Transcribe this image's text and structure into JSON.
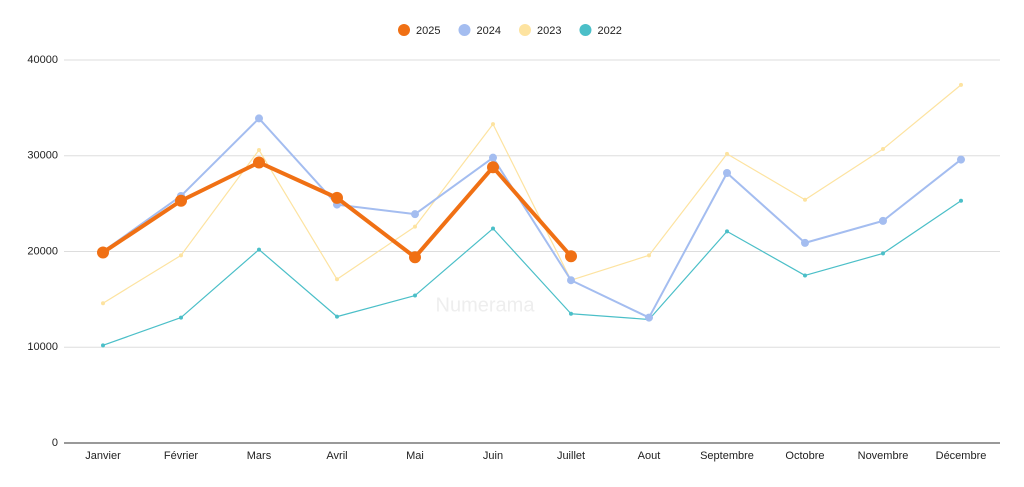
{
  "chart_data": {
    "type": "line",
    "categories": [
      "Janvier",
      "Février",
      "Mars",
      "Avril",
      "Mai",
      "Juin",
      "Juillet",
      "Aout",
      "Septembre",
      "Octobre",
      "Novembre",
      "Décembre"
    ],
    "series": [
      {
        "name": "2025",
        "color": "#f07014",
        "values": [
          19900,
          25300,
          29300,
          25600,
          19400,
          28800,
          19500,
          null,
          null,
          null,
          null,
          null
        ]
      },
      {
        "name": "2024",
        "color": "#a4bdf0",
        "values": [
          20000,
          25800,
          33900,
          24900,
          23900,
          29800,
          17000,
          13100,
          28200,
          20900,
          23200,
          29600
        ]
      },
      {
        "name": "2023",
        "color": "#fde3a0",
        "values": [
          14600,
          19600,
          30600,
          17100,
          22600,
          33300,
          17000,
          19600,
          30200,
          25400,
          30700,
          37400
        ]
      },
      {
        "name": "2022",
        "color": "#4bbfc8",
        "values": [
          10200,
          13100,
          20200,
          13200,
          15400,
          22400,
          13500,
          12900,
          22100,
          17500,
          19800,
          25300
        ]
      }
    ],
    "ylim": [
      0,
      40000
    ],
    "yticks": [
      0,
      10000,
      20000,
      30000,
      40000
    ],
    "grid": true,
    "legend": "top",
    "annotation": "Numerama"
  }
}
